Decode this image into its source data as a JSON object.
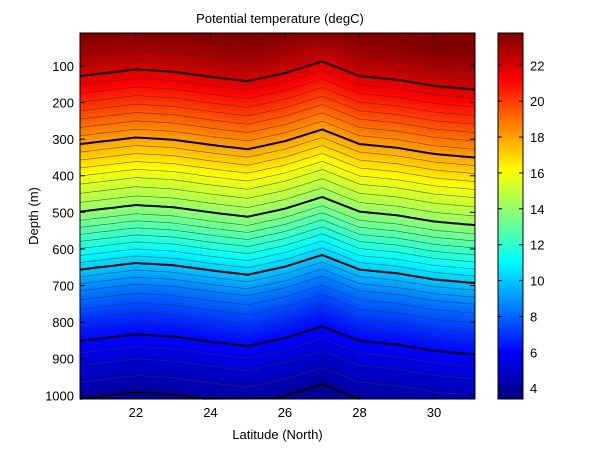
{
  "chart_data": {
    "type": "heatmap",
    "title": "Potential temperature (degC)",
    "xlabel": "Latitude (North)",
    "ylabel": "Depth (m)",
    "xlim": [
      20.5,
      31.1
    ],
    "ylim": [
      10,
      1010
    ],
    "y_reversed": true,
    "x_ticks": [
      22,
      24,
      26,
      28,
      30
    ],
    "y_ticks": [
      100,
      200,
      300,
      400,
      500,
      600,
      700,
      800,
      900,
      1000
    ],
    "colorbar": {
      "colormap": "jet",
      "range": [
        3.4,
        23.8
      ],
      "ticks": [
        4,
        6,
        8,
        10,
        12,
        14,
        16,
        18,
        20,
        22
      ]
    },
    "grid": false,
    "contour_levels_thin": [
      4.5,
      5,
      5.5,
      6,
      6.5,
      7,
      7.5,
      8,
      8.5,
      9,
      9.5,
      10,
      10.5,
      11,
      11.5,
      12,
      12.5,
      13,
      13.5,
      14,
      14.5,
      15,
      15.5,
      16,
      16.5,
      17,
      17.5,
      18,
      18.5,
      19,
      19.5,
      20,
      20.5,
      21,
      21.5,
      22,
      22.5,
      23
    ],
    "contour_levels_bold": [
      4,
      6,
      10,
      14,
      18,
      22
    ],
    "profile": {
      "depth": [
        10,
        100,
        200,
        300,
        400,
        500,
        600,
        700,
        800,
        900,
        1010
      ],
      "temperature": [
        23.8,
        22.2,
        20.1,
        17.9,
        15.6,
        13.6,
        11.0,
        8.4,
        6.5,
        5.0,
        3.8
      ]
    },
    "isotherm_displacement": {
      "latitude": [
        20.5,
        21.0,
        22.0,
        23.0,
        24.0,
        25.0,
        26.0,
        27.0,
        28.0,
        29.0,
        30.0,
        31.1
      ],
      "depth_offset": [
        18,
        12,
        0,
        6,
        20,
        32,
        10,
        -22,
        18,
        28,
        45,
        55
      ]
    }
  }
}
